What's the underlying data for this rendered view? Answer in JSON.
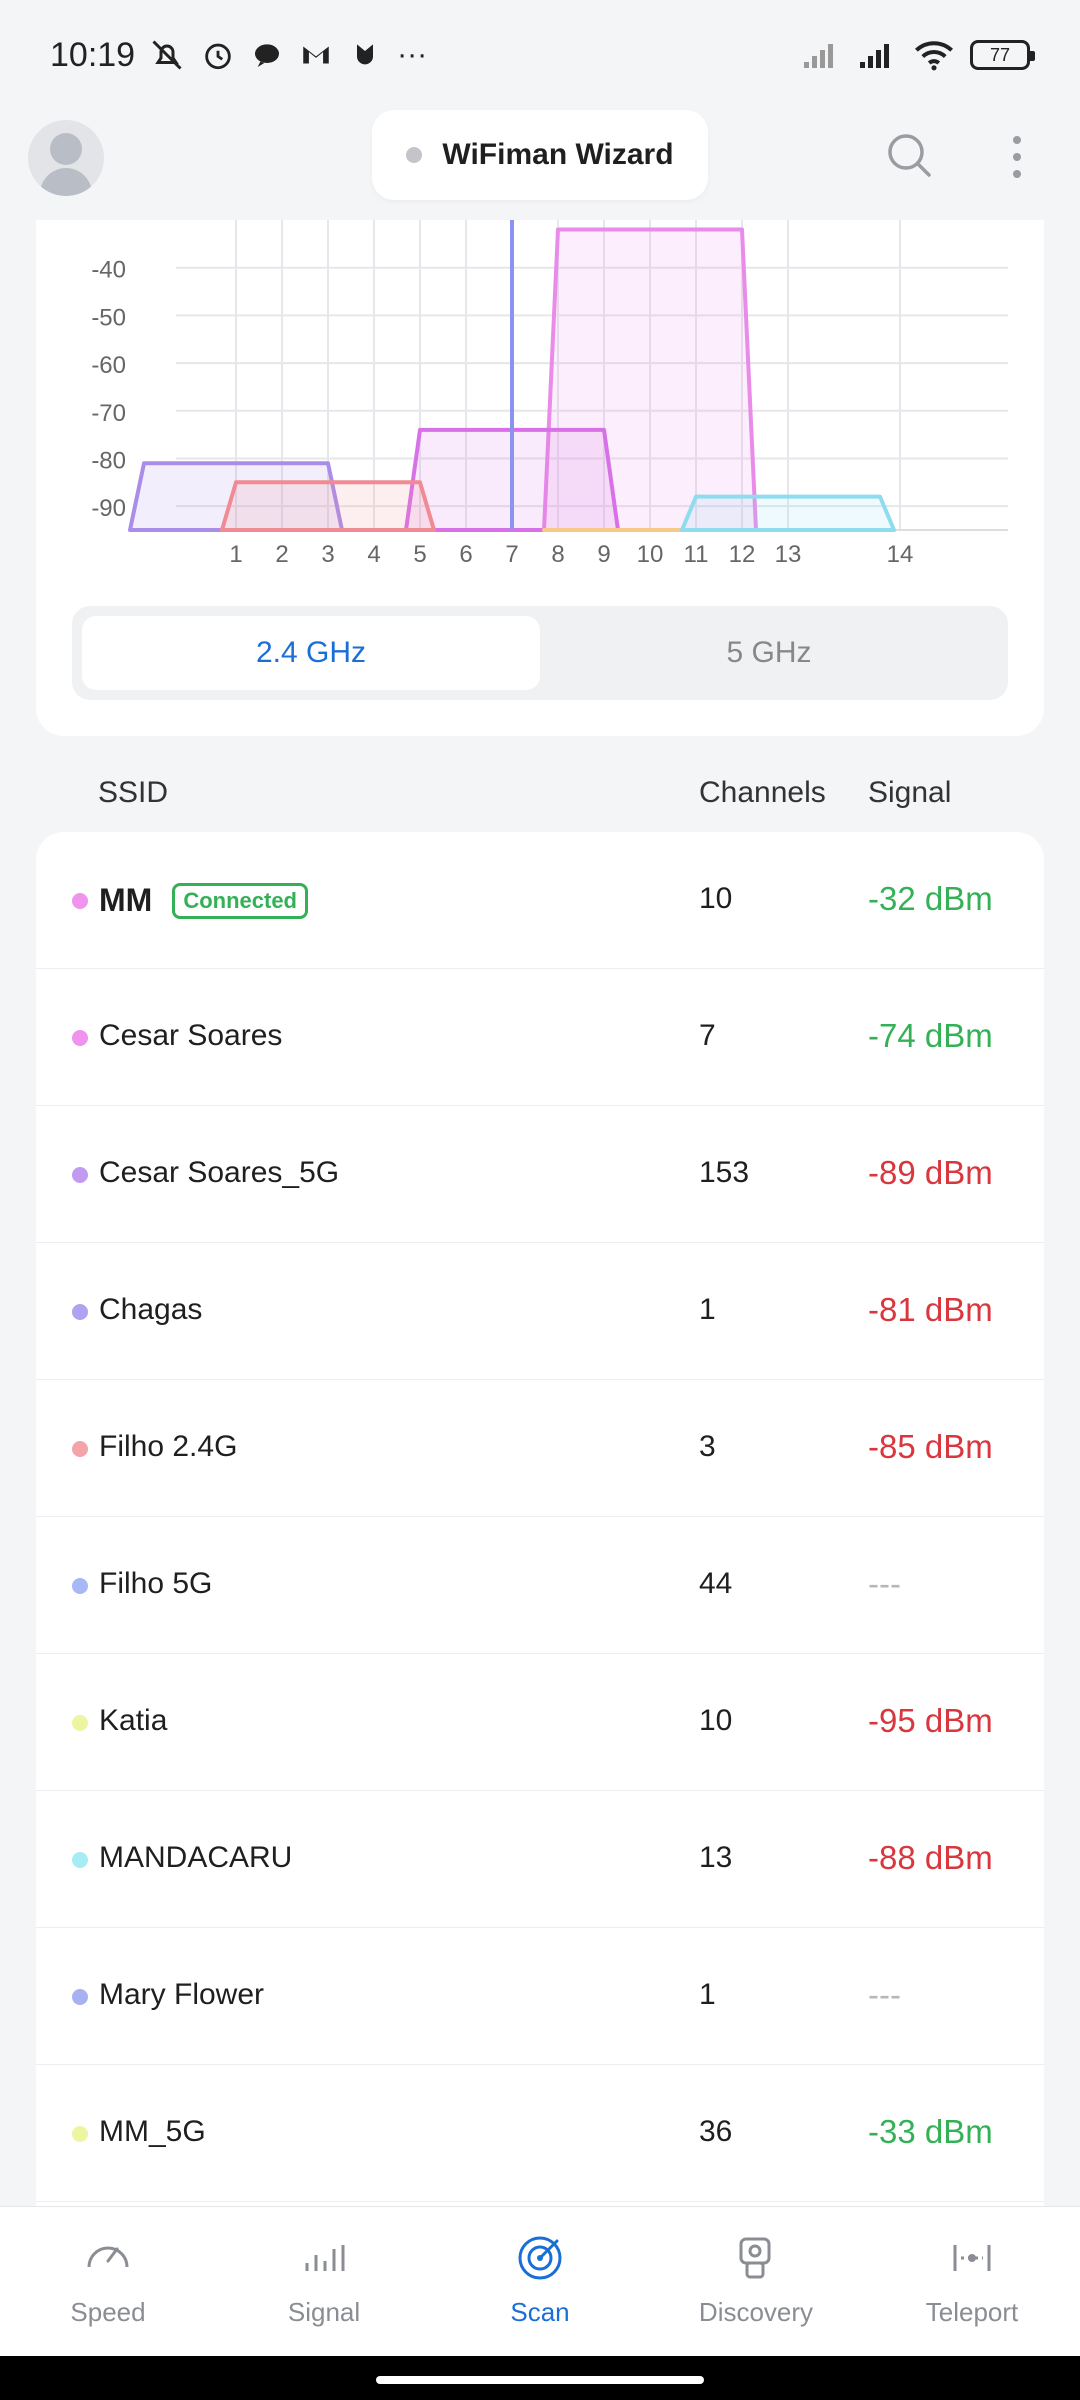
{
  "status_bar": {
    "time": "10:19",
    "icons": [
      "mute-icon",
      "alarm-icon",
      "chat-icon",
      "gmail-icon",
      "app-icon",
      "more-notifications-icon"
    ],
    "battery": "77"
  },
  "top_bar": {
    "wizard_label": "WiFiman Wizard",
    "icons": [
      "avatar",
      "search-icon",
      "more-vert-icon"
    ]
  },
  "chart_data": {
    "type": "area",
    "x_ticks": [
      "1",
      "2",
      "3",
      "4",
      "5",
      "6",
      "7",
      "8",
      "9",
      "10",
      "11",
      "12",
      "13",
      "14"
    ],
    "y_ticks": [
      "-40",
      "-50",
      "-60",
      "-70",
      "-80",
      "-90"
    ],
    "ylim": [
      -95,
      -30
    ],
    "grid": true,
    "marker_channel": 7,
    "series": [
      {
        "name": "MM",
        "channel": 10,
        "signal": -32,
        "color": "#e98be8"
      },
      {
        "name": "Cesar Soares",
        "channel": 7,
        "signal": -74,
        "color": "#d870e8"
      },
      {
        "name": "Chagas",
        "channel": 1,
        "signal": -81,
        "color": "#a98de8"
      },
      {
        "name": "Filho 2.4G",
        "channel": 3,
        "signal": -85,
        "color": "#f08b94"
      },
      {
        "name": "Katia",
        "channel": 10,
        "signal": -95,
        "color": "#f4c98a"
      },
      {
        "name": "MANDACARU",
        "channel": 13,
        "signal": -88,
        "color": "#8fdcef"
      }
    ]
  },
  "band_toggle": {
    "options": [
      "2.4 GHz",
      "5 GHz"
    ],
    "selected": "2.4 GHz"
  },
  "list_header": {
    "ssid": "SSID",
    "channels": "Channels",
    "signal": "Signal"
  },
  "networks": [
    {
      "ssid": "MM",
      "badge": "Connected",
      "channel": "10",
      "signal": "-32 dBm",
      "quality": "good",
      "color": "#ef93ee"
    },
    {
      "ssid": "Cesar Soares",
      "channel": "7",
      "signal": "-74 dBm",
      "quality": "good",
      "color": "#ef93ee"
    },
    {
      "ssid": "Cesar Soares_5G",
      "channel": "153",
      "signal": "-89 dBm",
      "quality": "bad",
      "color": "#c39af2"
    },
    {
      "ssid": "Chagas",
      "channel": "1",
      "signal": "-81 dBm",
      "quality": "bad",
      "color": "#b0a2f0"
    },
    {
      "ssid": "Filho 2.4G",
      "channel": "3",
      "signal": "-85 dBm",
      "quality": "bad",
      "color": "#f4a3a8"
    },
    {
      "ssid": "Filho 5G",
      "channel": "44",
      "signal": "---",
      "quality": "none",
      "color": "#a8b8f4"
    },
    {
      "ssid": "Katia",
      "channel": "10",
      "signal": "-95 dBm",
      "quality": "bad",
      "color": "#eef5a0"
    },
    {
      "ssid": "MANDACARU",
      "channel": "13",
      "signal": "-88 dBm",
      "quality": "bad",
      "color": "#a6ecf4"
    },
    {
      "ssid": "Mary Flower",
      "channel": "1",
      "signal": "---",
      "quality": "none",
      "color": "#a8b2f2"
    },
    {
      "ssid": "MM_5G",
      "channel": "36",
      "signal": "-33 dBm",
      "quality": "good",
      "color": "#eef5a0"
    }
  ],
  "bottom_nav": {
    "items": [
      {
        "label": "Speed",
        "icon": "speedometer-icon"
      },
      {
        "label": "Signal",
        "icon": "signal-bars-icon"
      },
      {
        "label": "Scan",
        "icon": "radar-icon",
        "active": true
      },
      {
        "label": "Discovery",
        "icon": "device-search-icon"
      },
      {
        "label": "Teleport",
        "icon": "teleport-icon"
      }
    ]
  }
}
